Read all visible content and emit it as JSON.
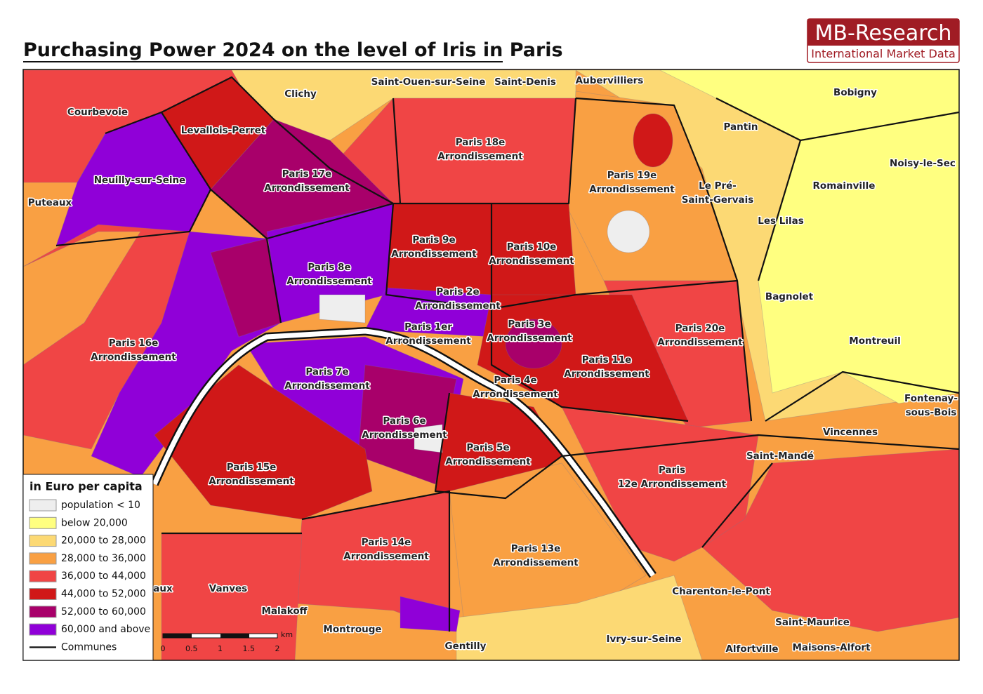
{
  "header": {
    "title": "Purchasing Power 2024 on the level of Iris in Paris"
  },
  "logo": {
    "name": "MB-Research",
    "tagline": "International Market Data"
  },
  "map": {
    "labels": [
      {
        "lines": [
          "Courbevoie"
        ]
      },
      {
        "lines": [
          "Levallois-Perret"
        ]
      },
      {
        "lines": [
          "Clichy"
        ]
      },
      {
        "lines": [
          "Saint-Ouen-sur-Seine"
        ]
      },
      {
        "lines": [
          "Saint-Denis"
        ]
      },
      {
        "lines": [
          "Aubervilliers"
        ]
      },
      {
        "lines": [
          "Bobigny"
        ]
      },
      {
        "lines": [
          "Pantin"
        ]
      },
      {
        "lines": [
          "Noisy-le-Sec"
        ]
      },
      {
        "lines": [
          "Neuilly-sur-Seine"
        ]
      },
      {
        "lines": [
          "Puteaux"
        ]
      },
      {
        "lines": [
          "Paris 17e",
          "Arrondissement"
        ]
      },
      {
        "lines": [
          "Paris 18e",
          "Arrondissement"
        ]
      },
      {
        "lines": [
          "Paris 19e",
          "Arrondissement"
        ]
      },
      {
        "lines": [
          "Le Pré-",
          "Saint-Gervais"
        ]
      },
      {
        "lines": [
          "Romainville"
        ]
      },
      {
        "lines": [
          "Les Lilas"
        ]
      },
      {
        "lines": [
          "Paris 9e",
          "Arrondissement"
        ]
      },
      {
        "lines": [
          "Paris 10e",
          "Arrondissement"
        ]
      },
      {
        "lines": [
          "Paris 8e",
          "Arrondissement"
        ]
      },
      {
        "lines": [
          "Bagnolet"
        ]
      },
      {
        "lines": [
          "Paris 2e",
          "Arrondissement"
        ]
      },
      {
        "lines": [
          "Paris 1er",
          "Arrondissement"
        ]
      },
      {
        "lines": [
          "Paris 3e",
          "Arrondissement"
        ]
      },
      {
        "lines": [
          "Paris 20e",
          "Arrondissement"
        ]
      },
      {
        "lines": [
          "Paris 16e",
          "Arrondissement"
        ]
      },
      {
        "lines": [
          "Montreuil"
        ]
      },
      {
        "lines": [
          "Paris 7e",
          "Arrondissement"
        ]
      },
      {
        "lines": [
          "Paris 11e",
          "Arrondissement"
        ]
      },
      {
        "lines": [
          "Paris 4e",
          "Arrondissement"
        ]
      },
      {
        "lines": [
          "Fontenay-",
          "sous-Bois"
        ]
      },
      {
        "lines": [
          "Paris 6e",
          "Arrondissement"
        ]
      },
      {
        "lines": [
          "Vincennes"
        ]
      },
      {
        "lines": [
          "Paris 5e",
          "Arrondissement"
        ]
      },
      {
        "lines": [
          "Saint-Mandé"
        ]
      },
      {
        "lines": [
          "Paris 15e",
          "Arrondissement"
        ]
      },
      {
        "lines": [
          "Paris",
          "12e Arrondissement"
        ]
      },
      {
        "lines": [
          "Paris 14e",
          "Arrondissement"
        ]
      },
      {
        "lines": [
          "Paris 13e",
          "Arrondissement"
        ]
      },
      {
        "lines": [
          "Vanves"
        ]
      },
      {
        "lines": [
          "aux"
        ]
      },
      {
        "lines": [
          "Charenton-le-Pont"
        ]
      },
      {
        "lines": [
          "Malakoff"
        ]
      },
      {
        "lines": [
          "Saint-Maurice"
        ]
      },
      {
        "lines": [
          "Montrouge"
        ]
      },
      {
        "lines": [
          "Gentilly"
        ]
      },
      {
        "lines": [
          "Ivry-sur-Seine"
        ]
      },
      {
        "lines": [
          "Alfortville"
        ]
      },
      {
        "lines": [
          "Maisons-Alfort"
        ]
      }
    ]
  },
  "legend": {
    "title": "in Euro per capita",
    "items": [
      {
        "label": "population < 10",
        "color": "#eeeeee"
      },
      {
        "label": "below 20,000",
        "color": "#ffff80"
      },
      {
        "label": "20,000 to 28,000",
        "color": "#fcd974"
      },
      {
        "label": "28,000 to 36,000",
        "color": "#f9a043"
      },
      {
        "label": "36,000 to 44,000",
        "color": "#f04545"
      },
      {
        "label": "44,000 to 52,000",
        "color": "#d01818"
      },
      {
        "label": "52,000 to 60,000",
        "color": "#a8006a"
      },
      {
        "label": "60,000 and above",
        "color": "#9000d8"
      }
    ],
    "communes": "Communes"
  },
  "scale": {
    "ticks": [
      "0",
      "0.5",
      "1",
      "1.5",
      "2"
    ],
    "unit": "km"
  }
}
